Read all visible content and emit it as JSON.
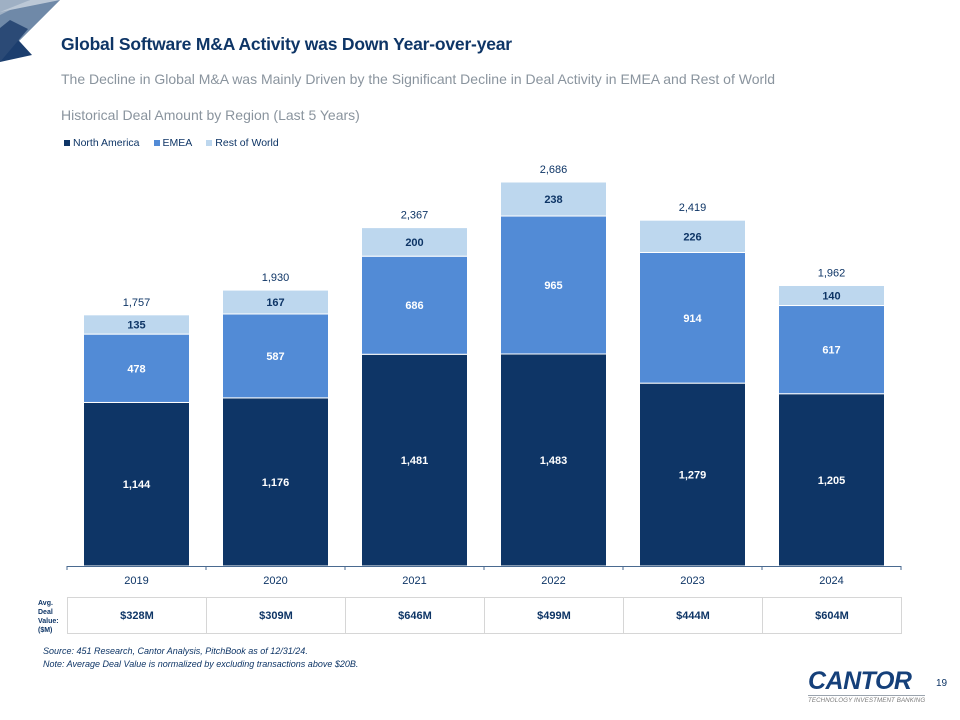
{
  "page": {
    "title": "Global Software M&A Activity was Down Year-over-year",
    "subtitle": "The Decline in Global M&A was Mainly Driven by the Significant Decline in Deal Activity in EMEA and Rest of World",
    "page_number": "19"
  },
  "colors": {
    "north_america": "#0e3566",
    "emea": "#528bd6",
    "rest_of_world": "#bdd7ee",
    "text": "#0e3566",
    "muted": "#8a949e"
  },
  "chart_data": {
    "type": "bar",
    "stacked": true,
    "title": "Historical Deal Amount by Region (Last 5 Years)",
    "xlabel": "",
    "ylabel": "",
    "categories": [
      "2019",
      "2020",
      "2021",
      "2022",
      "2023",
      "2024"
    ],
    "series": [
      {
        "name": "North America",
        "color": "#0e3566",
        "values": [
          1144,
          1176,
          1481,
          1483,
          1279,
          1205
        ],
        "labels": [
          "1,144",
          "1,176",
          "1,481",
          "1,483",
          "1,279",
          "1,205"
        ]
      },
      {
        "name": "EMEA",
        "color": "#528bd6",
        "values": [
          478,
          587,
          686,
          965,
          914,
          617
        ],
        "labels": [
          "478",
          "587",
          "686",
          "965",
          "914",
          "617"
        ]
      },
      {
        "name": "Rest of World",
        "color": "#bdd7ee",
        "values": [
          135,
          167,
          200,
          238,
          226,
          140
        ],
        "labels": [
          "135",
          "167",
          "200",
          "238",
          "226",
          "140"
        ]
      }
    ],
    "totals": [
      1757,
      1930,
      2367,
      2686,
      2419,
      1962
    ],
    "total_labels": [
      "1,757",
      "1,930",
      "2,367",
      "2,686",
      "2,419",
      "1,962"
    ],
    "ylim": [
      0,
      2686
    ],
    "grid": false,
    "legend": "top-left"
  },
  "avg_deal_value": {
    "label": "Avg. Deal Value: ($M)",
    "label_lines": [
      "Avg.",
      "Deal",
      "Value:",
      "($M)"
    ],
    "values": [
      "$328M",
      "$309M",
      "$646M",
      "$499M",
      "$444M",
      "$604M"
    ]
  },
  "footnotes": {
    "source": "Source: 451 Research, Cantor Analysis, PitchBook as of 12/31/24.",
    "note": "Note: Average Deal Value is normalized by excluding transactions above $20B."
  },
  "logo": {
    "name": "CANTOR",
    "tagline": "TECHNOLOGY INVESTMENT BANKING"
  }
}
